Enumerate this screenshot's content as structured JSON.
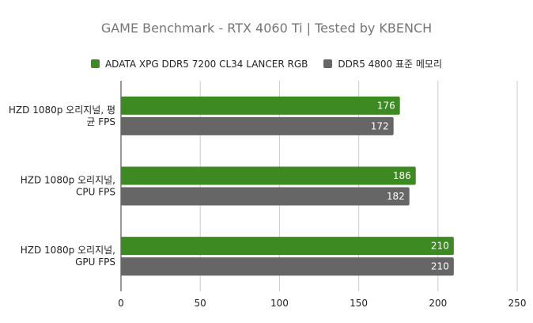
{
  "chart_data": {
    "type": "bar",
    "orientation": "horizontal",
    "title": "GAME Benchmark - RTX 4060 Ti | Tested by KBENCH",
    "categories": [
      [
        "HZD 1080p 오리지널, 평",
        "균 FPS"
      ],
      [
        "HZD 1080p 오리지널,",
        "CPU FPS"
      ],
      [
        "HZD 1080p 오리지널,",
        "GPU FPS"
      ]
    ],
    "series": [
      {
        "name": "ADATA XPG DDR5 7200 CL34 LANCER RGB",
        "color": "#3e8a22",
        "values": [
          176,
          186,
          210
        ]
      },
      {
        "name": "DDR5 4800 표준 메모리",
        "color": "#666666",
        "values": [
          172,
          182,
          210
        ]
      }
    ],
    "xlim": [
      0,
      250
    ],
    "xticks": [
      0,
      50,
      100,
      150,
      200,
      250
    ],
    "grid": true,
    "legend_position": "top"
  }
}
